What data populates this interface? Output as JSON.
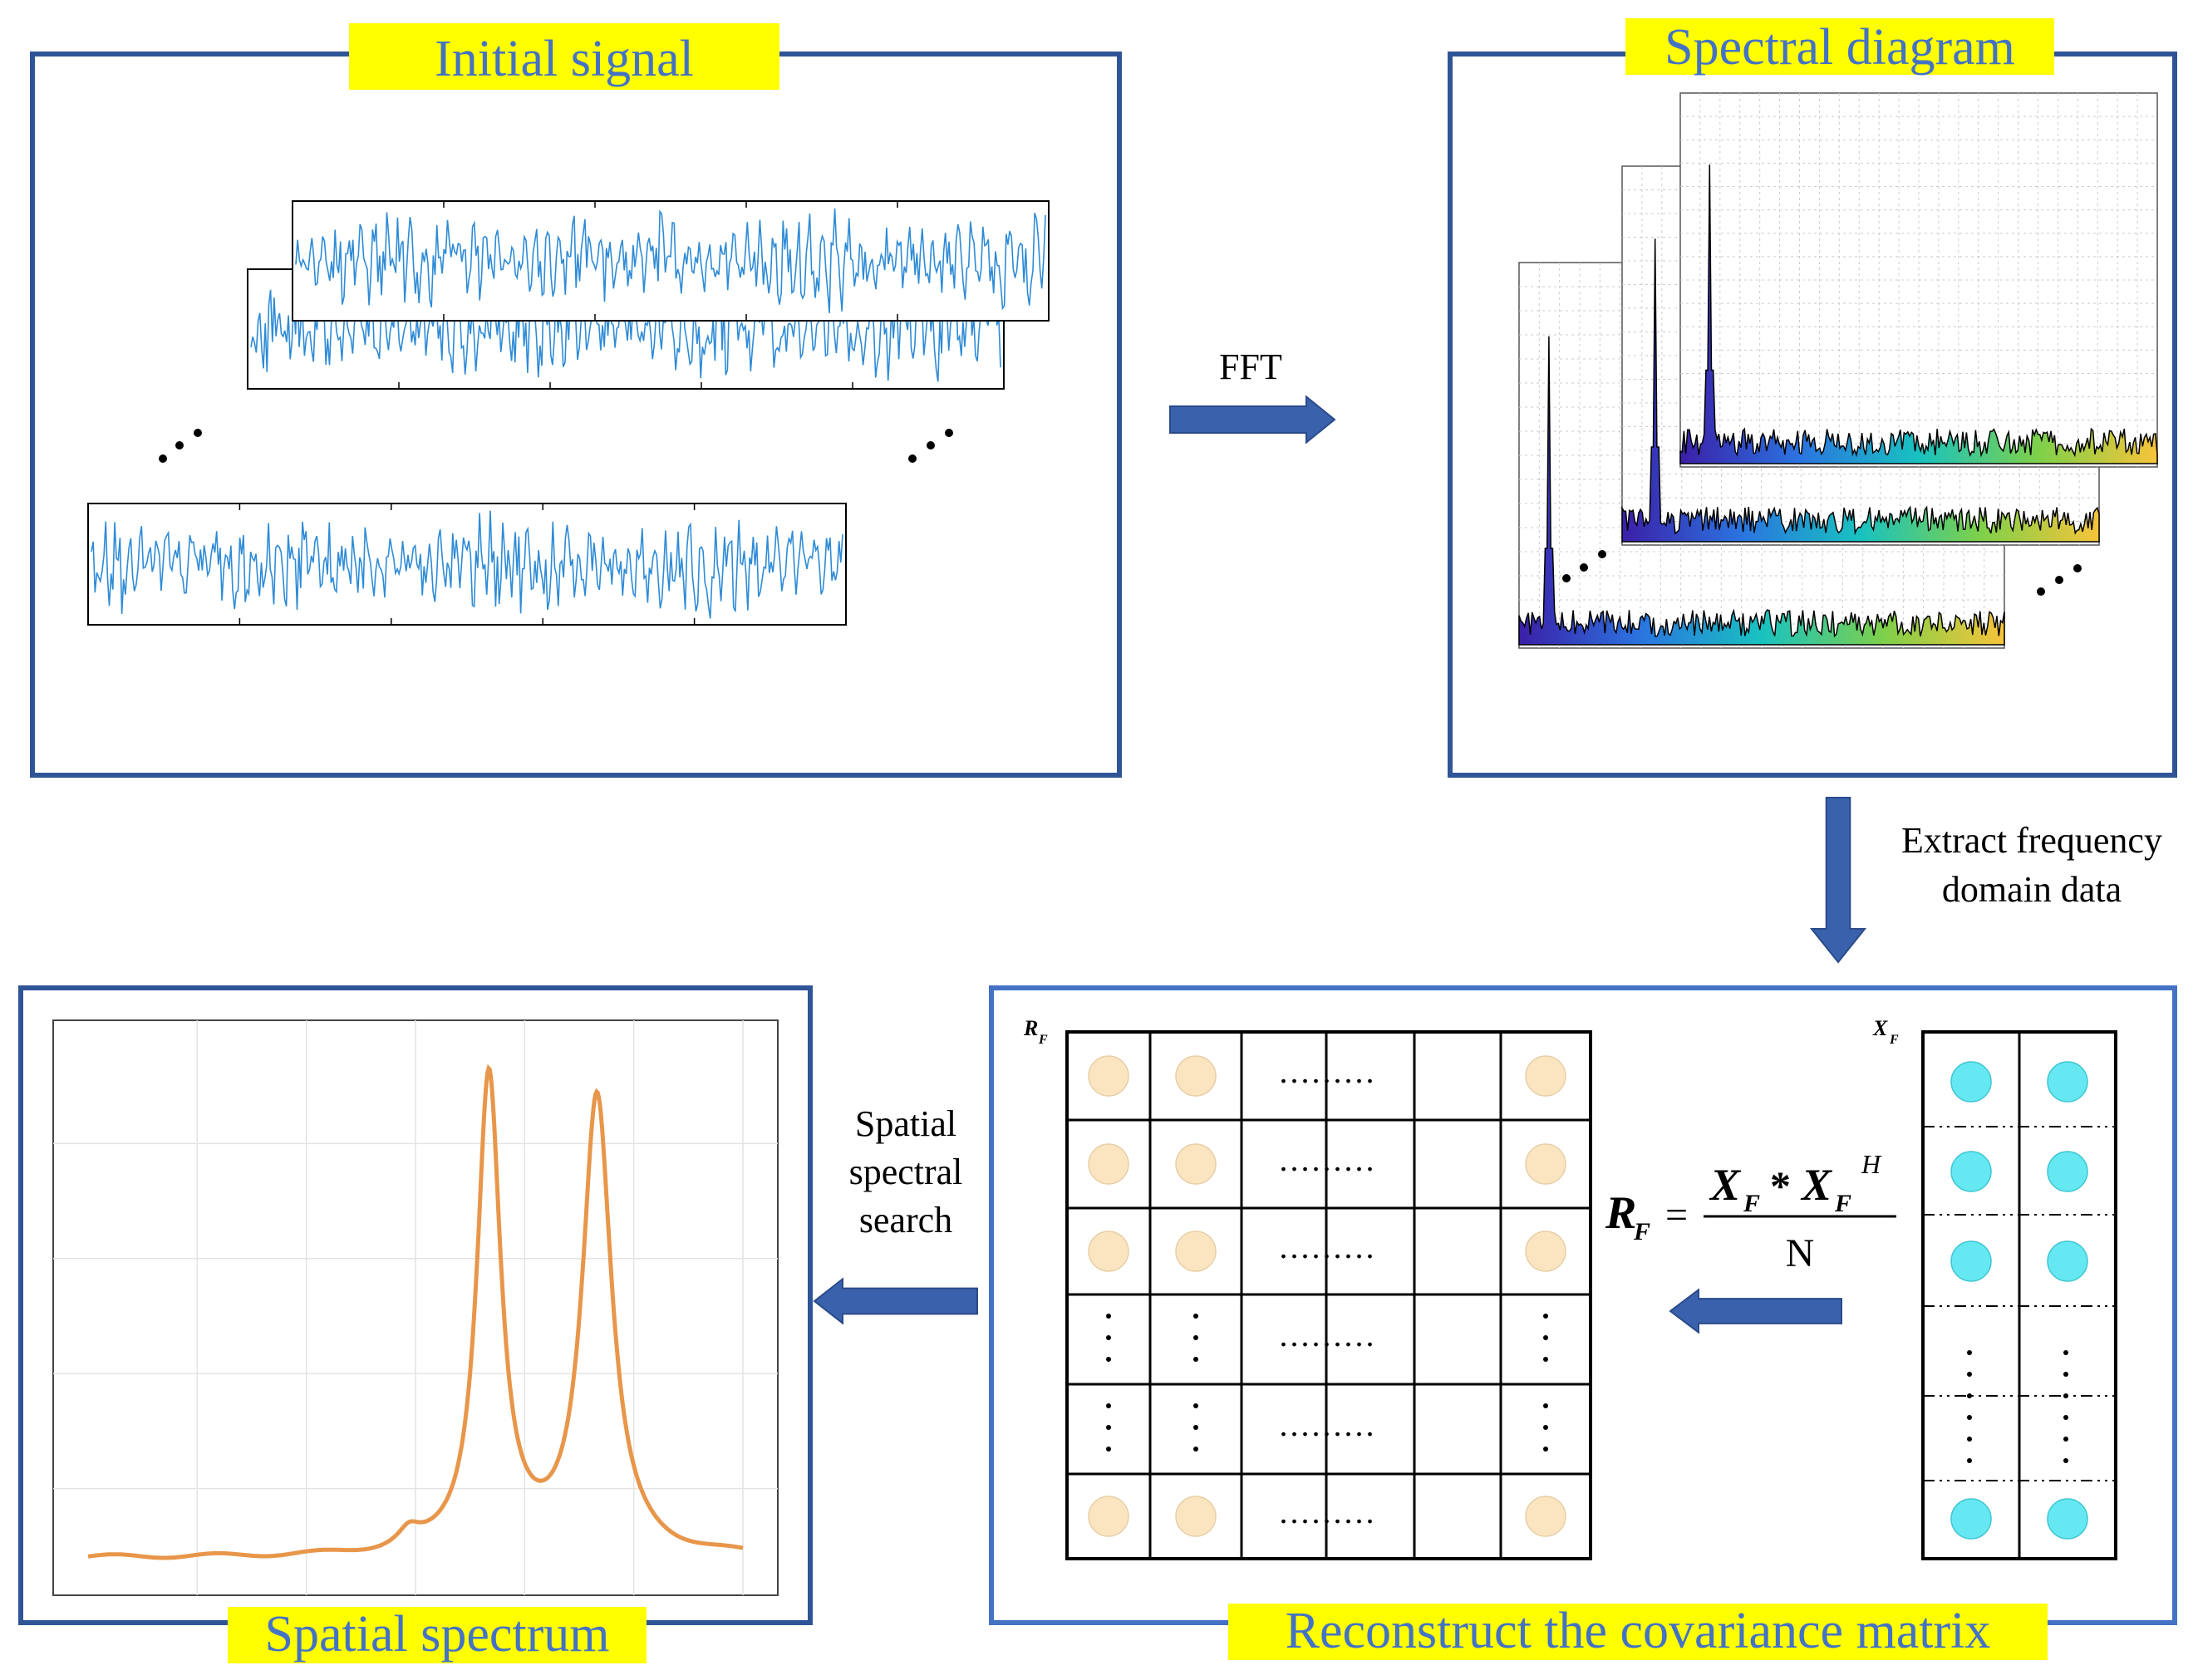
{
  "panels": {
    "initial_signal": "Initial signal",
    "spectral_diagram": "Spectral diagram",
    "spatial_spectrum": "Spatial spectrum",
    "reconstruct": "Reconstruct the covariance matrix"
  },
  "arrows": {
    "fft": "FFT",
    "extract_line1": "Extract frequency",
    "extract_line2": "domain data",
    "search_line1": "Spatial",
    "search_line2": "spectral",
    "search_line3": "search"
  },
  "matrix": {
    "r_label": "R",
    "r_sub": "F",
    "x_label": "X",
    "x_sub": "F",
    "dots_row": ".........",
    "formula": {
      "lhs": "R",
      "lhs_sub": "F",
      "equals": "=",
      "num_a": "X",
      "num_a_sub": "F",
      "times": "*",
      "num_b": "X",
      "num_b_sub": "F",
      "num_b_sup": "H",
      "denominator": "N"
    }
  },
  "colors": {
    "frame": "#2f5597",
    "tag_bg": "#ffff00",
    "tag_text": "#4472c4",
    "signal": "#2e8bd6",
    "spectrum_curve": "#e8964a",
    "cell_r": "#fbe5c0",
    "cell_x": "#66e8f2",
    "arrow": "#3a62ac"
  }
}
